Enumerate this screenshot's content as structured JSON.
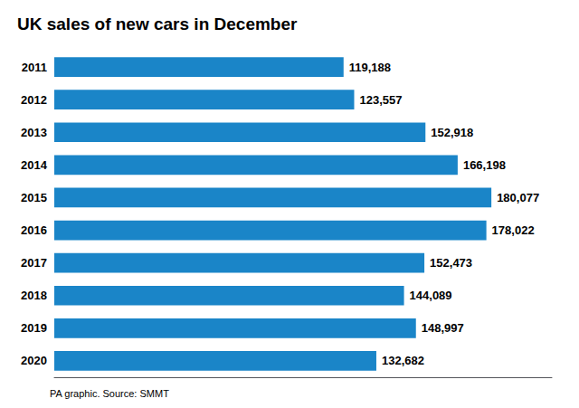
{
  "chart_data": {
    "type": "bar",
    "orientation": "horizontal",
    "title": "UK sales of new cars in December",
    "categories": [
      "2011",
      "2012",
      "2013",
      "2014",
      "2015",
      "2016",
      "2017",
      "2018",
      "2019",
      "2020"
    ],
    "values": [
      119188,
      123557,
      152918,
      166198,
      180077,
      178022,
      152473,
      144089,
      148997,
      132682
    ],
    "value_labels": [
      "119,188",
      "123,557",
      "152,918",
      "166,198",
      "180,077",
      "178,022",
      "152,473",
      "144,089",
      "148,997",
      "132,682"
    ],
    "data_labels": true,
    "color": "#1a85c8",
    "xlim": [
      0,
      205000
    ],
    "tick_labels": "y",
    "grid": false,
    "annotations": [
      "PA graphic. Source: SMMT"
    ]
  }
}
